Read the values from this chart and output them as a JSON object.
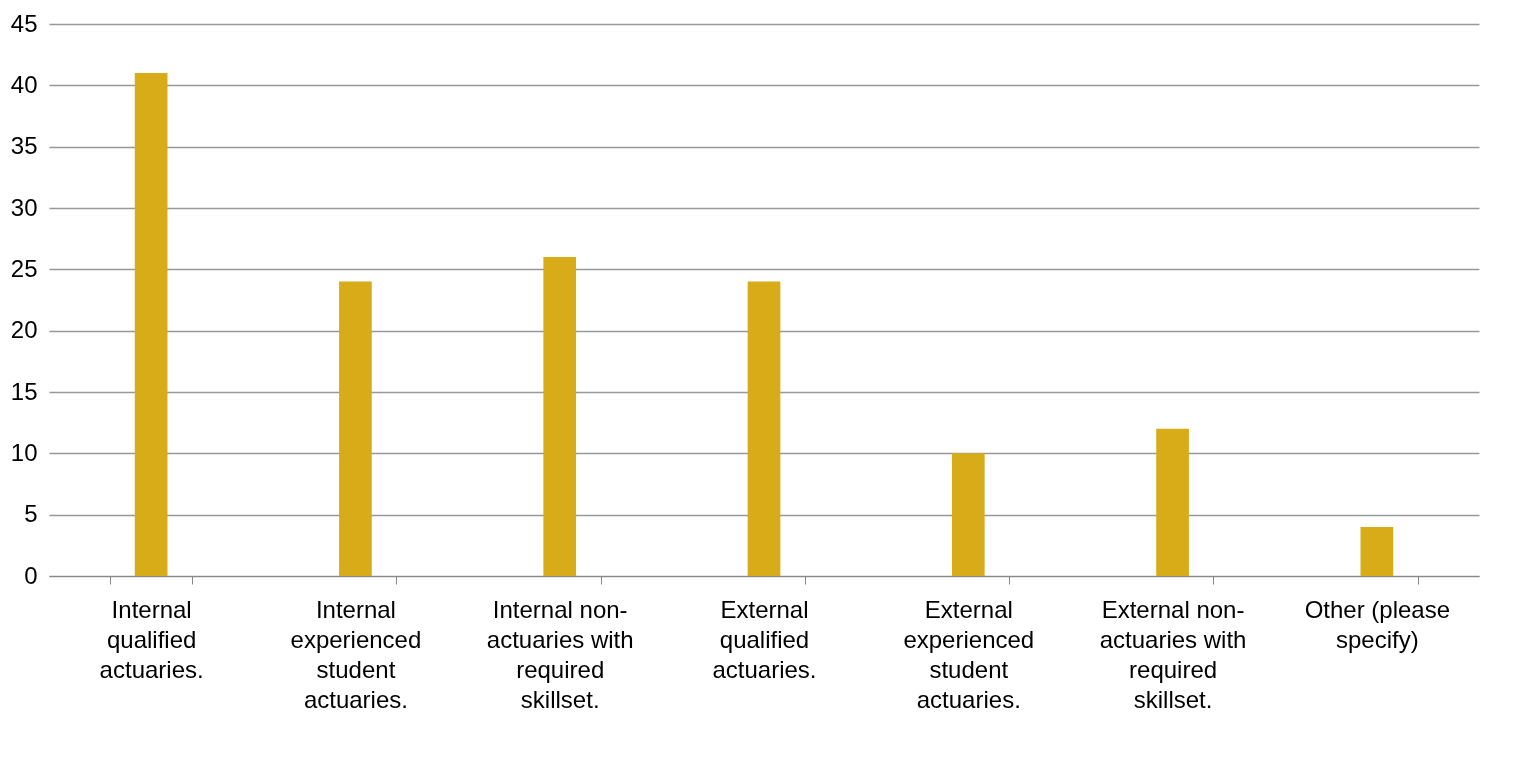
{
  "chart_data": {
    "type": "bar",
    "categories": [
      "Internal qualified actuaries.",
      "Internal experienced student actuaries.",
      "Internal non-actuaries with required skillset.",
      "External qualified actuaries.",
      "External experienced student actuaries.",
      "External non-actuaries with required skillset.",
      "Other (please specify)"
    ],
    "values": [
      41,
      24,
      26,
      24,
      10,
      12,
      4
    ],
    "color": "#d8ab19",
    "ylim": [
      0,
      45
    ],
    "yticks": [
      0,
      5,
      10,
      15,
      20,
      25,
      30,
      35,
      40,
      45
    ],
    "grid": "y"
  }
}
